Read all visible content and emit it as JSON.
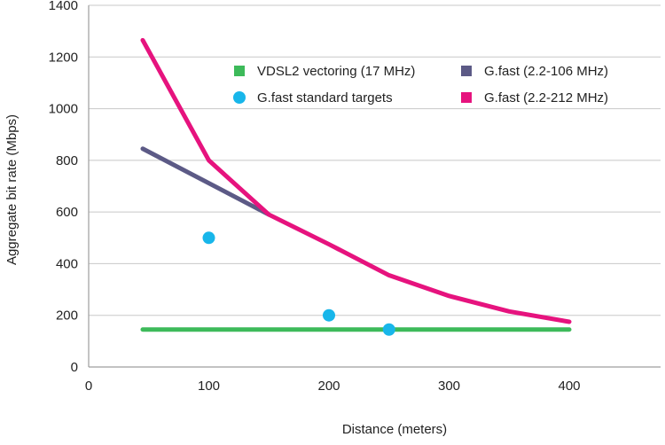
{
  "chart_data": {
    "type": "line",
    "xlabel": "Distance (meters)",
    "ylabel": "Aggregate bit rate (Mbps)",
    "xlim": [
      0,
      460
    ],
    "ylim": [
      0,
      1400
    ],
    "xticks": [
      0,
      100,
      200,
      300,
      400
    ],
    "yticks": [
      0,
      200,
      400,
      600,
      800,
      1000,
      1200,
      1400
    ],
    "grid": "horizontal",
    "legend_position": "top-right",
    "series": [
      {
        "name": "VDSL2 vectoring (17 MHz)",
        "kind": "line",
        "color": "#3dba5a",
        "x": [
          45,
          400
        ],
        "y": [
          145,
          145
        ]
      },
      {
        "name": "G.fast (2.2-106 MHz)",
        "kind": "line",
        "color": "#5c5a86",
        "x": [
          45,
          150
        ],
        "y": [
          845,
          590
        ]
      },
      {
        "name": "G.fast (2.2-212 MHz)",
        "kind": "line",
        "color": "#e6137e",
        "x": [
          45,
          100,
          150,
          200,
          250,
          300,
          350,
          400
        ],
        "y": [
          1265,
          800,
          590,
          475,
          355,
          275,
          215,
          175
        ]
      },
      {
        "name": "G.fast standard targets",
        "kind": "scatter",
        "color": "#18b6ea",
        "x": [
          100,
          200,
          250
        ],
        "y": [
          500,
          200,
          145
        ]
      }
    ],
    "legend": [
      {
        "label": "VDSL2 vectoring (17 MHz)",
        "series": 0,
        "marker": "square"
      },
      {
        "label": "G.fast (2.2-106 MHz)",
        "series": 1,
        "marker": "square"
      },
      {
        "label": "G.fast standard targets",
        "series": 3,
        "marker": "circle"
      },
      {
        "label": "G.fast (2.2-212 MHz)",
        "series": 2,
        "marker": "square"
      }
    ]
  },
  "colors": {
    "grid": "#c8c8c8",
    "axis": "#9e9e9e",
    "text": "#222222"
  }
}
